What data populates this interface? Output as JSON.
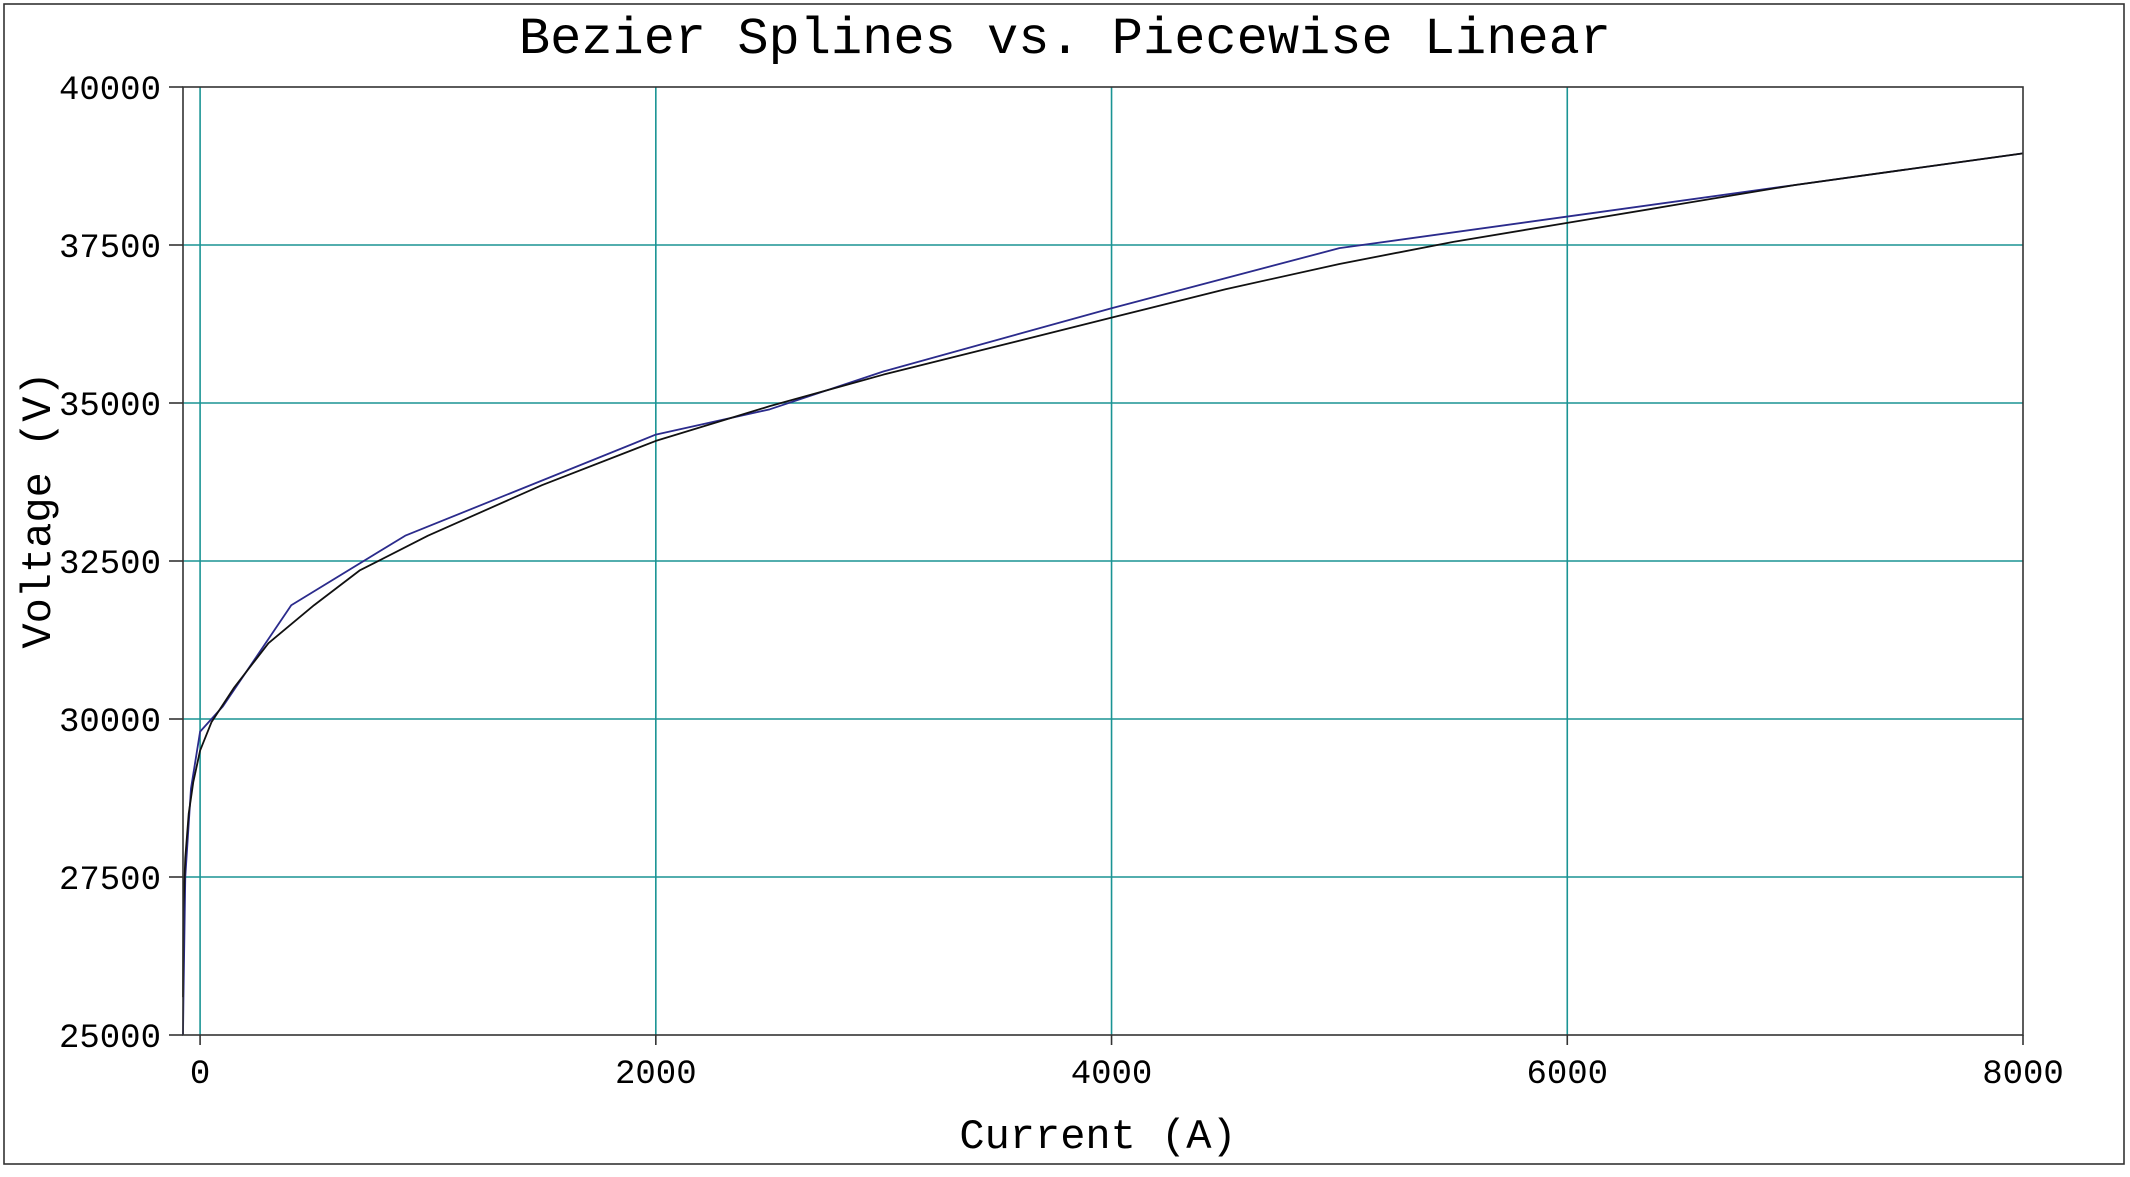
{
  "chart_data": {
    "type": "line",
    "title": "Bezier Splines vs. Piecewise Linear",
    "xlabel": "Current (A)",
    "ylabel": "Voltage (V)",
    "xlim": [
      -75,
      8000
    ],
    "ylim": [
      25000,
      40000
    ],
    "xticks": [
      0,
      2000,
      4000,
      6000,
      8000
    ],
    "yticks": [
      25000,
      27500,
      30000,
      32500,
      35000,
      37500,
      40000
    ],
    "xtick_labels": [
      "0",
      "2000",
      "4000",
      "6000",
      "8000"
    ],
    "ytick_labels": [
      "25000",
      "27500",
      "30000",
      "32500",
      "35000",
      "37500",
      "40000"
    ],
    "grid": true,
    "legend": "none",
    "colors": {
      "piecewise": "#2b2b8c",
      "bezier": "#111111",
      "grid": "#1a9494",
      "frame": "#333333"
    },
    "series": [
      {
        "x": [
          -75,
          -73,
          -65,
          -40,
          0,
          100,
          400,
          900,
          2000,
          2500,
          3000,
          4000,
          5000,
          6000,
          7000,
          8000
        ],
        "y": [
          25000,
          25600,
          27500,
          28900,
          29800,
          30200,
          31800,
          32900,
          34500,
          34900,
          35500,
          36500,
          37450,
          37950,
          38450,
          38950
        ],
        "color": "#2b2b8c"
      },
      {
        "x": [
          -75,
          -73,
          -65,
          -50,
          -30,
          0,
          50,
          150,
          300,
          500,
          700,
          1000,
          1500,
          2000,
          2500,
          3000,
          3500,
          4000,
          4500,
          5000,
          5500,
          6000,
          6500,
          7000,
          7500,
          8000
        ],
        "y": [
          25600,
          27000,
          27800,
          28500,
          29000,
          29500,
          29950,
          30500,
          31200,
          31800,
          32350,
          32900,
          33700,
          34400,
          34950,
          35450,
          35900,
          36350,
          36800,
          37200,
          37550,
          37850,
          38150,
          38450,
          38700,
          38950
        ],
        "color": "#111111"
      }
    ]
  }
}
